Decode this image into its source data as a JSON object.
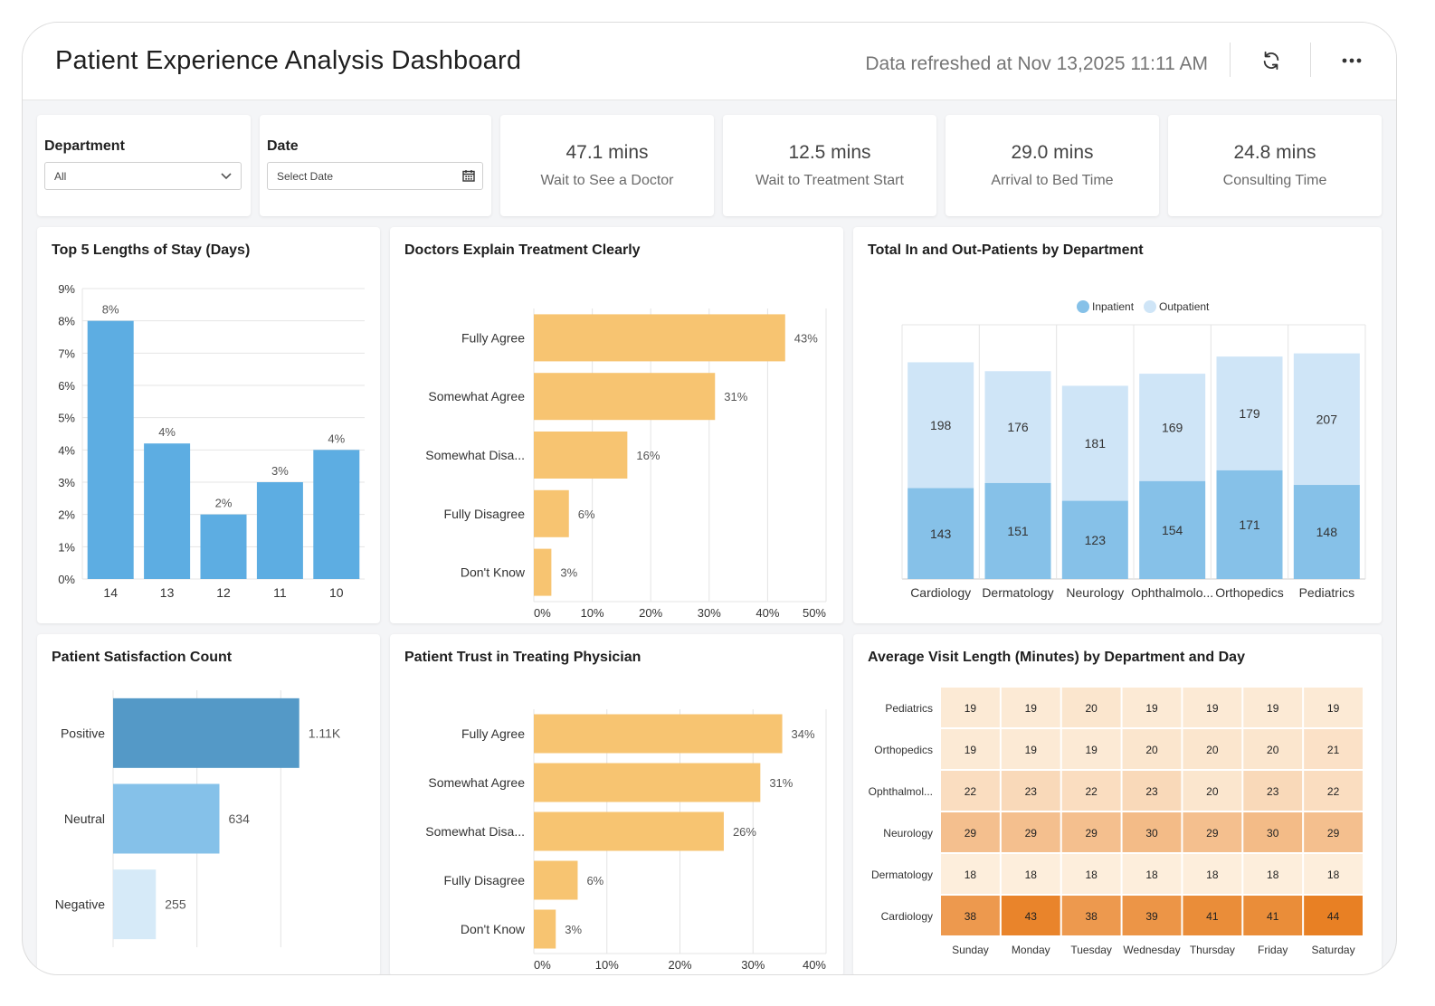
{
  "header": {
    "title": "Patient Experience Analysis Dashboard",
    "refreshed": "Data refreshed at Nov 13,2025 11:11 AM",
    "icons": [
      "refresh-icon",
      "more-icon"
    ]
  },
  "filters": {
    "department": {
      "label": "Department",
      "value": "All"
    },
    "date": {
      "label": "Date",
      "placeholder": "Select Date"
    }
  },
  "kpis": [
    {
      "value": "47.1 mins",
      "label": "Wait to See a Doctor"
    },
    {
      "value": "12.5 mins",
      "label": "Wait to Treatment Start"
    },
    {
      "value": "29.0 mins",
      "label": "Arrival to Bed Time"
    },
    {
      "value": "24.8 mins",
      "label": "Consulting Time"
    }
  ],
  "charts": {
    "stay": {
      "title": "Top 5 Lengths of Stay (Days)"
    },
    "explain": {
      "title": "Doctors Explain Treatment Clearly"
    },
    "inout": {
      "title": "Total In and Out-Patients by Department"
    },
    "satisfaction": {
      "title": "Patient Satisfaction Count"
    },
    "trust": {
      "title": "Patient Trust in Treating Physician"
    },
    "heatmap": {
      "title": "Average Visit Length (Minutes) by Department and Day"
    }
  },
  "colors": {
    "blue": "#5dade2",
    "orange": "#f7c471",
    "inpatient": "#86c1e8",
    "outpatient": "#cfe5f7"
  },
  "chart_data": [
    {
      "type": "bar",
      "title": "Top 5 Lengths of Stay (Days)",
      "categories": [
        "14",
        "13",
        "12",
        "11",
        "10"
      ],
      "values": [
        8,
        4.2,
        2,
        3,
        4
      ],
      "data_labels": [
        "8%",
        "4%",
        "2%",
        "3%",
        "4%"
      ],
      "y_ticks": [
        "0%",
        "1%",
        "2%",
        "3%",
        "4%",
        "5%",
        "6%",
        "7%",
        "8%",
        "9%"
      ],
      "ylim": [
        0,
        9
      ],
      "grid": true
    },
    {
      "type": "bar",
      "orientation": "horizontal",
      "title": "Doctors Explain Treatment Clearly",
      "categories": [
        "Fully Agree",
        "Somewhat Agree",
        "Somewhat Disa...",
        "Fully Disagree",
        "Don't Know"
      ],
      "values": [
        43,
        31,
        16,
        6,
        3
      ],
      "data_labels": [
        "43%",
        "31%",
        "16%",
        "6%",
        "3%"
      ],
      "x_ticks": [
        "0%",
        "10%",
        "20%",
        "30%",
        "40%",
        "50%"
      ],
      "xlim": [
        0,
        50
      ],
      "grid": true
    },
    {
      "type": "bar",
      "stacked": true,
      "title": "Total In and Out-Patients by Department",
      "categories": [
        "Cardiology",
        "Dermatology",
        "Neurology",
        "Ophthalmolo...",
        "Orthopedics",
        "Pediatrics"
      ],
      "series": [
        {
          "name": "Inpatient",
          "values": [
            143,
            151,
            123,
            154,
            171,
            148
          ]
        },
        {
          "name": "Outpatient",
          "values": [
            198,
            176,
            181,
            169,
            179,
            207
          ]
        }
      ],
      "legend": "top-center",
      "grid": true
    },
    {
      "type": "bar",
      "orientation": "horizontal",
      "title": "Patient Satisfaction Count",
      "categories": [
        "Positive",
        "Neutral",
        "Negative"
      ],
      "values": [
        1110,
        634,
        255
      ],
      "data_labels": [
        "1.11K",
        "634",
        "255"
      ],
      "xlim": [
        0,
        1500
      ],
      "grid": true
    },
    {
      "type": "bar",
      "orientation": "horizontal",
      "title": "Patient Trust in Treating Physician",
      "categories": [
        "Fully Agree",
        "Somewhat Agree",
        "Somewhat Disa...",
        "Fully Disagree",
        "Don't Know"
      ],
      "values": [
        34,
        31,
        26,
        6,
        3
      ],
      "data_labels": [
        "34%",
        "31%",
        "26%",
        "6%",
        "3%"
      ],
      "x_ticks": [
        "0%",
        "10%",
        "20%",
        "30%",
        "40%"
      ],
      "xlim": [
        0,
        40
      ],
      "grid": true
    },
    {
      "type": "heatmap",
      "title": "Average Visit Length (Minutes) by Department and Day",
      "rows": [
        "Pediatrics",
        "Orthopedics",
        "Ophthalmol...",
        "Neurology",
        "Dermatology",
        "Cardiology"
      ],
      "cols": [
        "Sunday",
        "Monday",
        "Tuesday",
        "Wednesday",
        "Thursday",
        "Friday",
        "Saturday"
      ],
      "values": [
        [
          19,
          19,
          20,
          19,
          19,
          19,
          19
        ],
        [
          19,
          19,
          19,
          20,
          20,
          20,
          21
        ],
        [
          22,
          23,
          22,
          23,
          20,
          23,
          22
        ],
        [
          29,
          29,
          29,
          30,
          29,
          30,
          29
        ],
        [
          18,
          18,
          18,
          18,
          18,
          18,
          18
        ],
        [
          38,
          43,
          38,
          39,
          41,
          41,
          44
        ]
      ]
    }
  ]
}
